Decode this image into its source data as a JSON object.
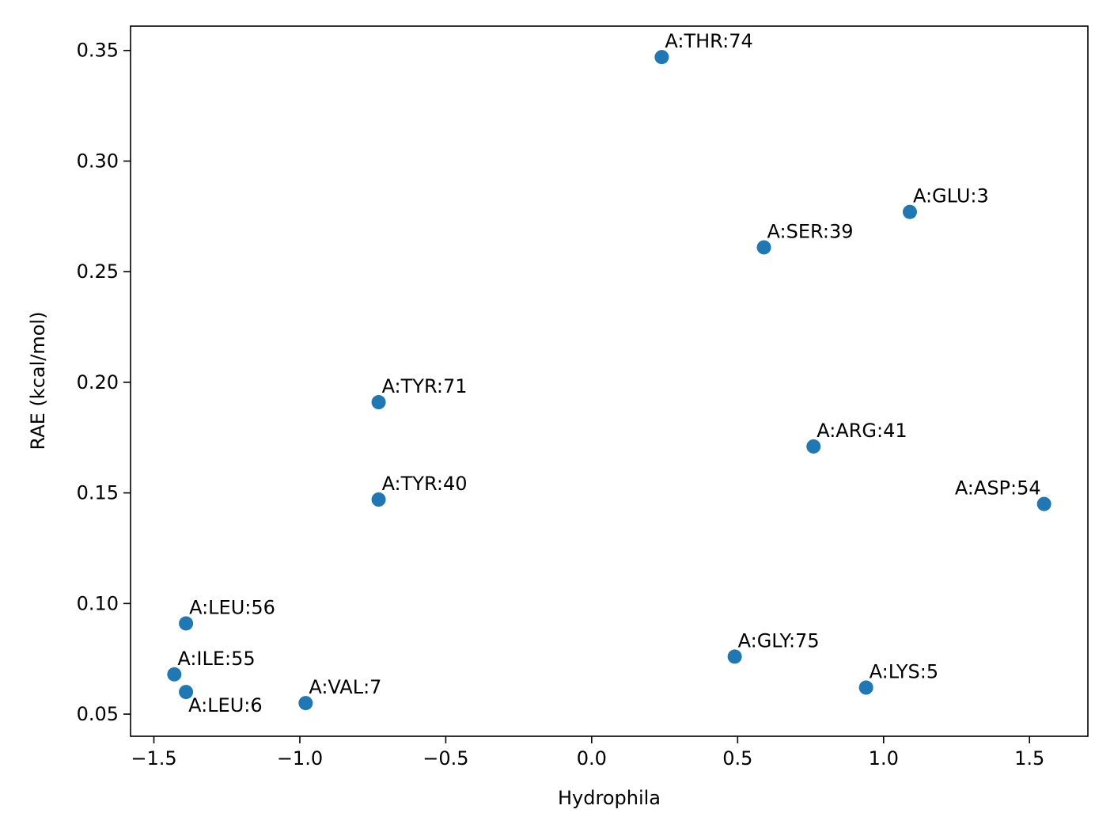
{
  "chart_data": {
    "type": "scatter",
    "xlabel": "Hydrophila",
    "ylabel": "RAE (kcal/mol)",
    "xlim": [
      -1.58,
      1.7
    ],
    "ylim": [
      0.04,
      0.361
    ],
    "xticks": [
      -1.5,
      -1.0,
      -0.5,
      0.0,
      0.5,
      1.0,
      1.5
    ],
    "xtick_labels": [
      "−1.5",
      "−1.0",
      "−0.5",
      "0.0",
      "0.5",
      "1.0",
      "1.5"
    ],
    "yticks": [
      0.05,
      0.1,
      0.15,
      0.2,
      0.25,
      0.3,
      0.35
    ],
    "ytick_labels": [
      "0.05",
      "0.10",
      "0.15",
      "0.20",
      "0.25",
      "0.30",
      "0.35"
    ],
    "grid": false,
    "marker_color": "#1f77b4",
    "points": [
      {
        "label": "A:THR:74",
        "x": 0.24,
        "y": 0.347
      },
      {
        "label": "A:GLU:3",
        "x": 1.09,
        "y": 0.277
      },
      {
        "label": "A:SER:39",
        "x": 0.59,
        "y": 0.261
      },
      {
        "label": "A:TYR:71",
        "x": -0.73,
        "y": 0.191
      },
      {
        "label": "A:ARG:41",
        "x": 0.76,
        "y": 0.171
      },
      {
        "label": "A:TYR:40",
        "x": -0.73,
        "y": 0.147
      },
      {
        "label": "A:ASP:54",
        "x": 1.55,
        "y": 0.145
      },
      {
        "label": "A:LEU:56",
        "x": -1.39,
        "y": 0.091
      },
      {
        "label": "A:GLY:75",
        "x": 0.49,
        "y": 0.076
      },
      {
        "label": "A:ILE:55",
        "x": -1.43,
        "y": 0.068
      },
      {
        "label": "A:LYS:5",
        "x": 0.94,
        "y": 0.062
      },
      {
        "label": "A:LEU:6",
        "x": -1.39,
        "y": 0.06
      },
      {
        "label": "A:VAL:7",
        "x": -0.98,
        "y": 0.055
      }
    ]
  }
}
